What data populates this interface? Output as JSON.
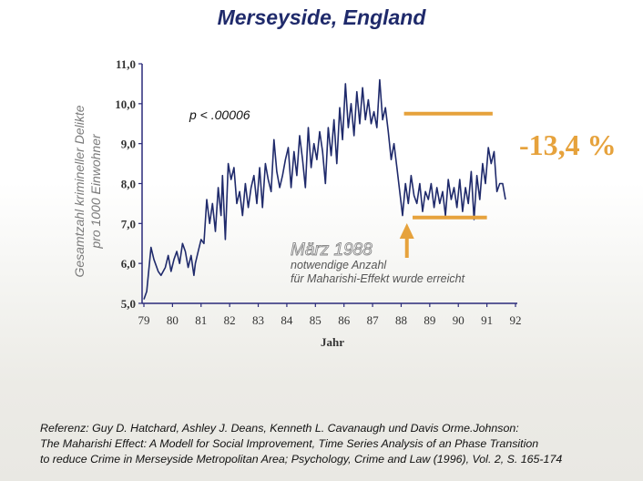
{
  "chart_data": {
    "type": "line",
    "title": "Merseyside, England",
    "ylabel_lines": [
      "Gesamtzahl krimineller Delikte",
      "pro 1000 Einwohner"
    ],
    "xlabel": "Jahr",
    "xlim": [
      79,
      92
    ],
    "ylim": [
      5.0,
      11.0
    ],
    "yticks": [
      "5,0",
      "6,0",
      "7,0",
      "8,0",
      "9,0",
      "10,0",
      "11,0"
    ],
    "xticks": [
      "79",
      "80",
      "81",
      "82",
      "83",
      "84",
      "85",
      "86",
      "87",
      "88",
      "89",
      "90",
      "91",
      "92"
    ],
    "annotations": {
      "p_value": "p < .00006",
      "event_title": "März 1988",
      "event_text_1": "notwendige Anzahl",
      "event_text_2": "für Maharishi-Effekt wurde erreicht",
      "change": "-13,4 %"
    },
    "reference_levels": [
      {
        "y": 9.75,
        "x_start": 88.1,
        "x_end": 91.2
      },
      {
        "y": 7.15,
        "x_start": 88.4,
        "x_end": 91.0
      }
    ],
    "event_x": 88.2,
    "series": [
      {
        "x": [
          79.0,
          79.1,
          79.25,
          79.35,
          79.5,
          79.6,
          79.75,
          79.85,
          79.95,
          80.05,
          80.15,
          80.25,
          80.35,
          80.45,
          80.55,
          80.65,
          80.75,
          80.8,
          80.9,
          81.0,
          81.1,
          81.2,
          81.3,
          81.4,
          81.5,
          81.6,
          81.7,
          81.75,
          81.85,
          81.95,
          82.05,
          82.15,
          82.25,
          82.35,
          82.45,
          82.55,
          82.65,
          82.75,
          82.85,
          82.95,
          83.05,
          83.15,
          83.25,
          83.35,
          83.45,
          83.55,
          83.65,
          83.75,
          83.85,
          83.95,
          84.05,
          84.15,
          84.25,
          84.35,
          84.45,
          84.55,
          84.65,
          84.75,
          84.85,
          84.95,
          85.05,
          85.15,
          85.25,
          85.35,
          85.45,
          85.55,
          85.65,
          85.75,
          85.85,
          85.95,
          86.05,
          86.15,
          86.25,
          86.35,
          86.45,
          86.55,
          86.65,
          86.75,
          86.85,
          86.95,
          87.05,
          87.15,
          87.25,
          87.35,
          87.45,
          87.55,
          87.65,
          87.75,
          87.85,
          87.95,
          88.05,
          88.15,
          88.25,
          88.35,
          88.45,
          88.55,
          88.65,
          88.75,
          88.85,
          88.95,
          89.05,
          89.15,
          89.25,
          89.35,
          89.45,
          89.55,
          89.65,
          89.75,
          89.85,
          89.95,
          90.05,
          90.15,
          90.25,
          90.35,
          90.45,
          90.55,
          90.65,
          90.75,
          90.85,
          90.95,
          91.05,
          91.15,
          91.25,
          91.35,
          91.45,
          91.55,
          91.65
        ],
        "y": [
          5.1,
          5.3,
          6.4,
          6.1,
          5.8,
          5.7,
          5.9,
          6.2,
          5.8,
          6.1,
          6.3,
          6.0,
          6.5,
          6.3,
          5.9,
          6.2,
          5.7,
          6.0,
          6.3,
          6.6,
          6.5,
          7.6,
          7.0,
          7.5,
          6.8,
          7.9,
          7.2,
          8.2,
          6.6,
          8.5,
          8.1,
          8.4,
          7.5,
          7.8,
          7.2,
          8.0,
          7.4,
          7.9,
          8.2,
          7.5,
          8.4,
          7.4,
          8.5,
          8.1,
          7.8,
          9.1,
          8.3,
          7.9,
          8.2,
          8.6,
          8.9,
          7.9,
          8.8,
          8.2,
          9.2,
          8.6,
          7.9,
          9.4,
          8.4,
          9.0,
          8.6,
          9.3,
          8.8,
          8.0,
          9.4,
          8.7,
          9.6,
          8.5,
          9.9,
          9.1,
          10.5,
          9.4,
          10.0,
          9.2,
          10.3,
          9.5,
          10.4,
          9.6,
          10.1,
          9.5,
          9.8,
          9.4,
          10.6,
          9.6,
          9.9,
          9.3,
          8.6,
          9.0,
          8.4,
          7.8,
          7.2,
          8.0,
          7.5,
          8.2,
          7.7,
          7.5,
          8.0,
          7.3,
          7.8,
          7.6,
          8.0,
          7.4,
          7.9,
          7.5,
          7.8,
          7.2,
          8.1,
          7.6,
          7.9,
          7.4,
          8.1,
          7.3,
          7.9,
          7.5,
          8.3,
          7.1,
          8.2,
          7.6,
          8.5,
          8.0,
          8.9,
          8.5,
          8.8,
          7.8,
          8.0,
          8.0,
          7.6
        ]
      }
    ],
    "colors": {
      "title": "#1f2a6b",
      "line": "#1f2a6b",
      "accent": "#e6a23c",
      "axis": "#2a2a7a",
      "ylabel": "#7a7a7a",
      "annotation_grey": "#8a8a8a"
    }
  },
  "reference": {
    "lines": [
      "Referenz: Guy D. Hatchard, Ashley J. Deans, Kenneth L. Cavanaugh und Davis Orme.Johnson:",
      "The Maharishi Effect: A Modell for Social Improvement, Time Series Analysis of an Phase Transition",
      "to reduce Crime in Merseyside Metropolitan Area; Psychology, Crime and Law (1996), Vol. 2, S. 165-174"
    ]
  }
}
